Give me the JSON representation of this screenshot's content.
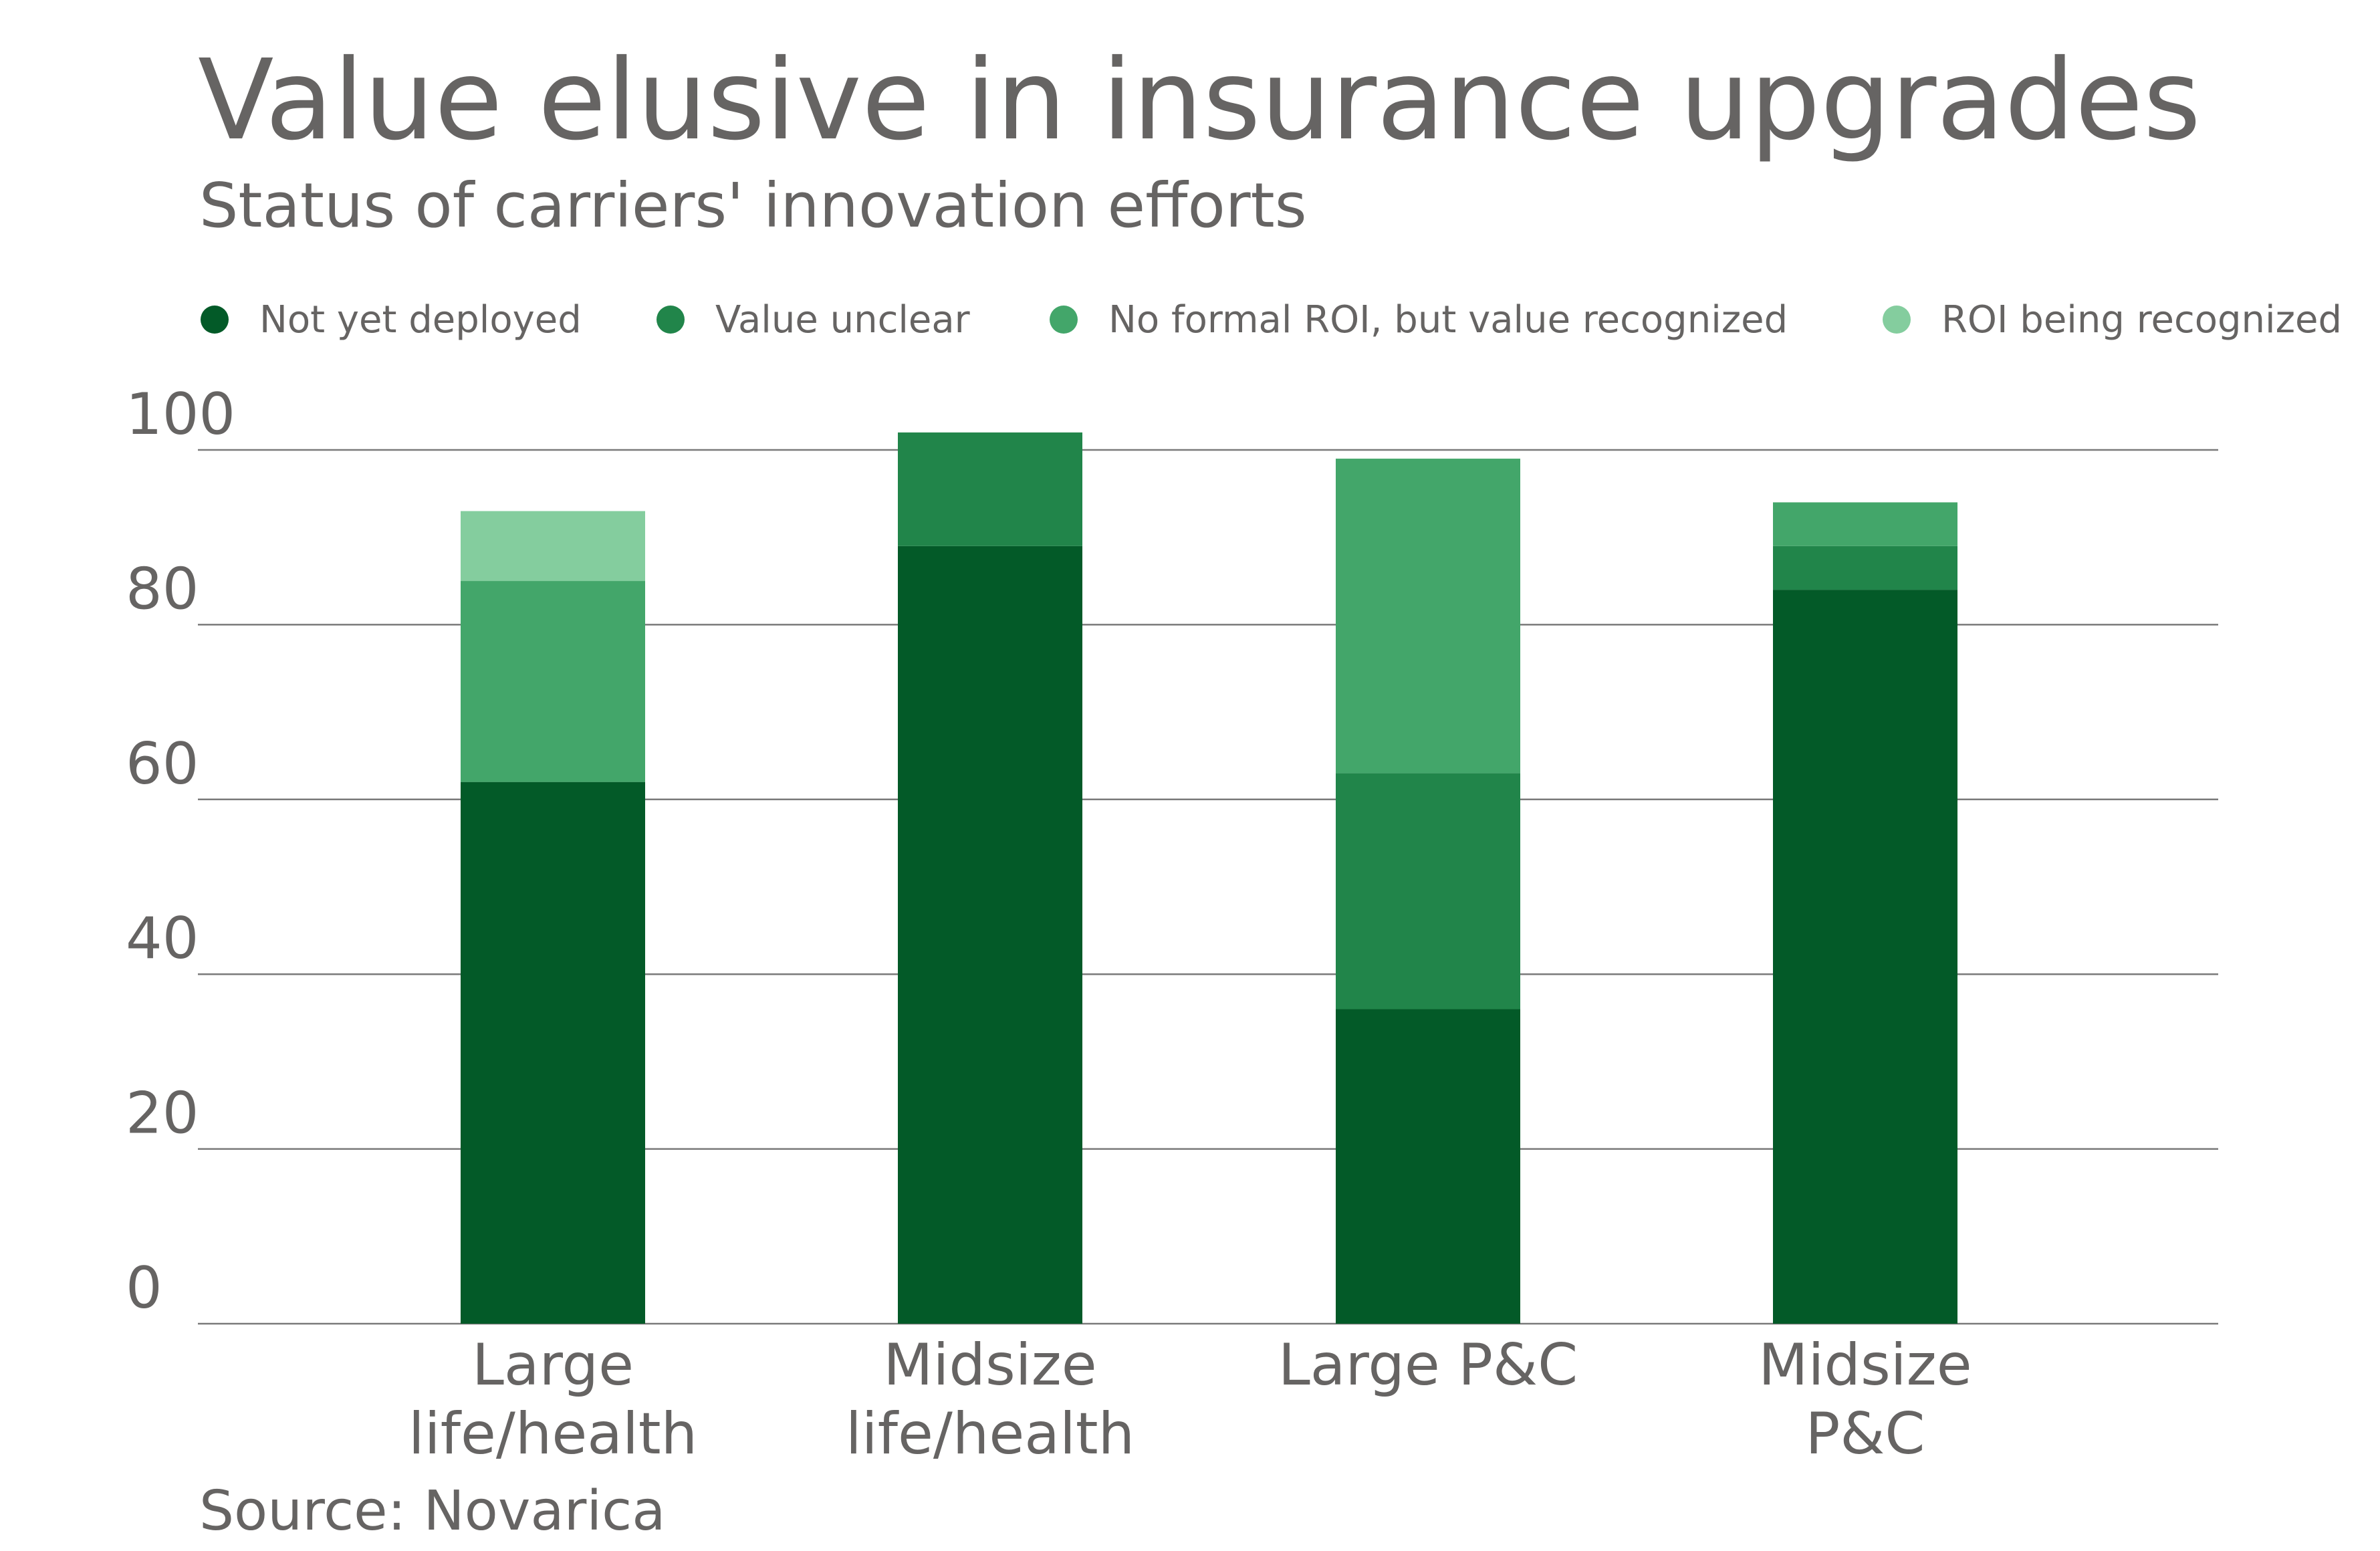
{
  "title": "Value elusive in insurance upgrades",
  "subtitle": "Status of carriers' innovation efforts",
  "source": "Source: Novarica",
  "colors": {
    "text": "#666463",
    "grid": "#7a7a7a"
  },
  "legend": [
    {
      "label": "Not yet deployed",
      "color": "#035a28"
    },
    {
      "label": "Value unclear",
      "color": "#21854a"
    },
    {
      "label": "No formal ROI, but value recognized",
      "color": "#43a66a"
    },
    {
      "label": "ROI being recognized",
      "color": "#84cd9e"
    }
  ],
  "chart_data": {
    "type": "bar",
    "stacked": true,
    "categories": [
      [
        "Large",
        "life/health"
      ],
      [
        "Midsize",
        "life/health"
      ],
      [
        "Large P&C"
      ],
      [
        "Midsize",
        "P&C"
      ]
    ],
    "series": [
      {
        "name": "Not yet deployed",
        "values": [
          62,
          89,
          36,
          84
        ],
        "color": "#035a28"
      },
      {
        "name": "Value unclear",
        "values": [
          0,
          13,
          27,
          5
        ],
        "color": "#21854a"
      },
      {
        "name": "No formal ROI, but value recognized",
        "values": [
          23,
          0,
          36,
          5
        ],
        "color": "#43a66a"
      },
      {
        "name": "ROI being recognized",
        "values": [
          8,
          0,
          0,
          0
        ],
        "color": "#84cd9e"
      }
    ],
    "ylim": [
      0,
      100
    ],
    "yticks": [
      0,
      20,
      40,
      60,
      80,
      100
    ],
    "grid": true,
    "legend_position": "top"
  }
}
